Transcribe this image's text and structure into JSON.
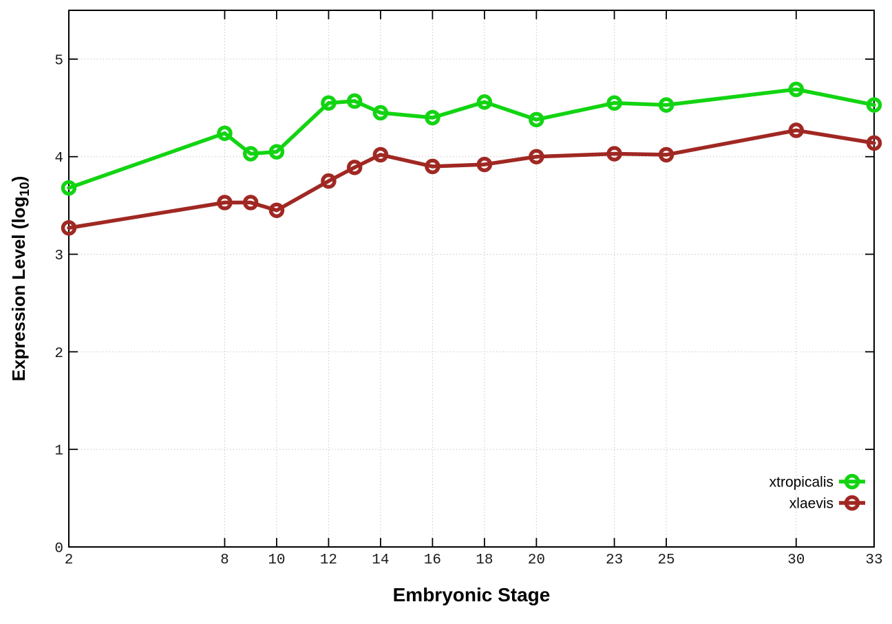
{
  "chart_data": {
    "type": "line",
    "title": "",
    "xlabel": "Embryonic Stage",
    "ylabel": {
      "text": "Expression Level (log",
      "subscript": "10",
      "suffix": ")"
    },
    "xlim": [
      2,
      33
    ],
    "ylim": [
      0,
      5.5
    ],
    "x_ticks": [
      2,
      8,
      10,
      12,
      14,
      16,
      18,
      20,
      23,
      25,
      30,
      33
    ],
    "y_ticks": [
      0,
      1,
      2,
      3,
      4,
      5
    ],
    "grid": true,
    "legend_position": "inside-right-lower",
    "marker": "open-circle",
    "x": [
      2,
      8,
      9,
      10,
      12,
      13,
      14,
      16,
      18,
      20,
      23,
      25,
      30,
      33
    ],
    "series": [
      {
        "name": "xtropicalis",
        "color": "#12d412",
        "values": [
          3.68,
          4.24,
          4.03,
          4.05,
          4.55,
          4.57,
          4.45,
          4.4,
          4.56,
          4.38,
          4.55,
          4.53,
          4.69,
          4.53
        ]
      },
      {
        "name": "xlaevis",
        "color": "#a02823",
        "values": [
          3.27,
          3.53,
          3.53,
          3.45,
          3.75,
          3.89,
          4.02,
          3.9,
          3.92,
          4.0,
          4.03,
          4.02,
          4.27,
          4.14
        ]
      }
    ],
    "colors": {
      "background": "#ffffff",
      "grid": "#c6c6c6",
      "axis": "#000000"
    }
  }
}
